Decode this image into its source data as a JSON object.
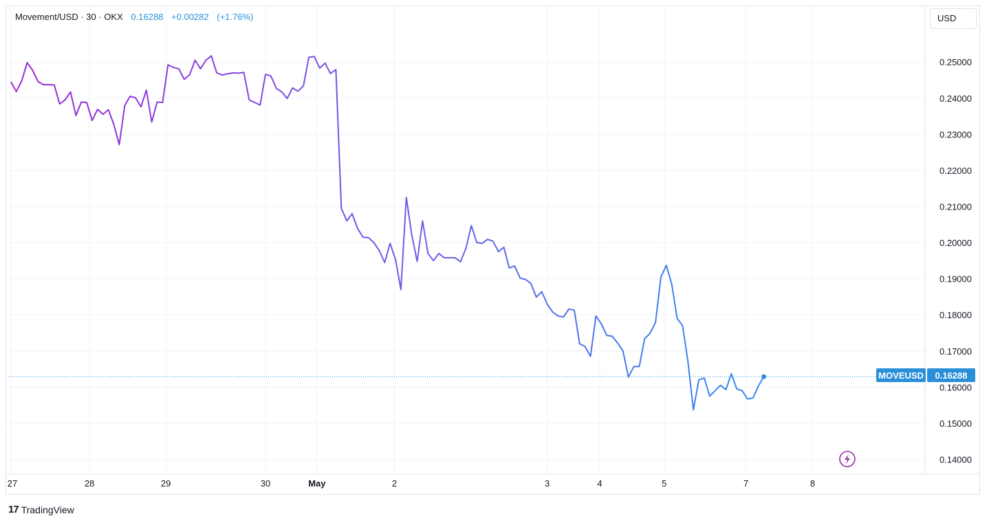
{
  "legend": {
    "symbol_text": "Movement/USD · 30 · OKX",
    "last_price": "0.16288",
    "change": "+0.00282",
    "change_pct": "(+1.76%)"
  },
  "currency_button": "USD",
  "price_tag": {
    "symbol": "MOVEUSD",
    "value": "0.16288"
  },
  "footer": {
    "brand": "TradingView",
    "logo_glyph": "17"
  },
  "colors": {
    "start": "#9c27d9",
    "mid": "#6a5ee8",
    "end": "#2196f3",
    "accent": "#2a8fd9"
  },
  "chart_data": {
    "type": "line",
    "title": "",
    "xlabel": "",
    "ylabel": "",
    "ylim": [
      0.134,
      0.2605
    ],
    "y_ticks": [
      "0.25000",
      "0.24000",
      "0.23000",
      "0.22000",
      "0.21000",
      "0.20000",
      "0.19000",
      "0.18000",
      "0.17000",
      "0.16000",
      "0.15000",
      "0.14000"
    ],
    "y_tick_values": [
      0.25,
      0.24,
      0.23,
      0.22,
      0.21,
      0.2,
      0.19,
      0.18,
      0.17,
      0.16,
      0.15,
      0.14
    ],
    "x_tick_labels": [
      {
        "label": "27",
        "x": 0.0,
        "bold": false
      },
      {
        "label": "28",
        "x": 14.5,
        "bold": false
      },
      {
        "label": "29",
        "x": 28.6,
        "bold": false
      },
      {
        "label": "30",
        "x": 47.0,
        "bold": false
      },
      {
        "label": "May",
        "x": 56.5,
        "bold": true
      },
      {
        "label": "2",
        "x": 70.8,
        "bold": false
      },
      {
        "label": "3",
        "x": 99.0,
        "bold": false
      },
      {
        "label": "4",
        "x": 108.7,
        "bold": false
      },
      {
        "label": "5",
        "x": 120.6,
        "bold": false
      },
      {
        "label": "7",
        "x": 135.7,
        "bold": false
      },
      {
        "label": "8",
        "x": 148.0,
        "bold": false
      }
    ],
    "x_range": [
      -0.3,
      156
    ],
    "last_value": 0.16288,
    "series": [
      {
        "values": [
          0.2445,
          0.2418,
          0.2448,
          0.2498,
          0.2477,
          0.2446,
          0.2437,
          0.2437,
          0.2436,
          0.2384,
          0.2395,
          0.2417,
          0.2352,
          0.2389,
          0.2388,
          0.2338,
          0.2369,
          0.2355,
          0.2368,
          0.2327,
          0.2271,
          0.2379,
          0.2405,
          0.2401,
          0.2376,
          0.2422,
          0.2334,
          0.2389,
          0.2388,
          0.2492,
          0.2485,
          0.2481,
          0.2452,
          0.2465,
          0.2505,
          0.2481,
          0.2505,
          0.2517,
          0.247,
          0.2464,
          0.2467,
          0.247,
          0.2469,
          0.2471,
          0.2395,
          0.2388,
          0.2381,
          0.2466,
          0.2461,
          0.2427,
          0.2417,
          0.2399,
          0.2428,
          0.2419,
          0.2434,
          0.2513,
          0.2515,
          0.2483,
          0.2497,
          0.2468,
          0.2479,
          0.2095,
          0.206,
          0.208,
          0.2039,
          0.2015,
          0.2014,
          0.2,
          0.1978,
          0.1945,
          0.1998,
          0.1953,
          0.187,
          0.2125,
          0.2021,
          0.1948,
          0.206,
          0.197,
          0.195,
          0.197,
          0.1958,
          0.1958,
          0.1958,
          0.1947,
          0.1984,
          0.2047,
          0.2,
          0.1998,
          0.2009,
          0.2004,
          0.1975,
          0.1987,
          0.193,
          0.1935,
          0.1902,
          0.1898,
          0.1887,
          0.1849,
          0.1864,
          0.183,
          0.1808,
          0.1797,
          0.1794,
          0.1816,
          0.1813,
          0.172,
          0.1712,
          0.1685,
          0.1797,
          0.1775,
          0.1743,
          0.1741,
          0.1722,
          0.17,
          0.1628,
          0.1657,
          0.1657,
          0.1734,
          0.1749,
          0.1779,
          0.1905,
          0.1937,
          0.1885,
          0.179,
          0.177,
          0.167,
          0.1537,
          0.162,
          0.1625,
          0.1575,
          0.159,
          0.1605,
          0.1593,
          0.1637,
          0.1595,
          0.159,
          0.1567,
          0.157,
          0.1603,
          0.1629
        ]
      }
    ]
  }
}
